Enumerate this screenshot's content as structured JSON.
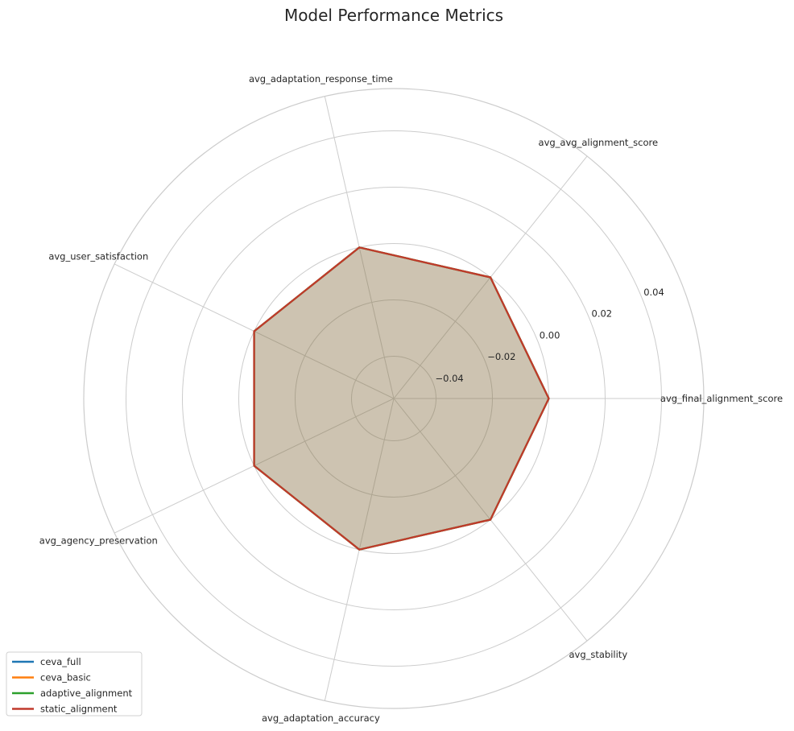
{
  "chart_data": {
    "type": "radar",
    "title": "Model Performance Metrics",
    "axes": [
      "avg_final_alignment_score",
      "avg_avg_alignment_score",
      "avg_adaptation_response_time",
      "avg_user_satisfaction",
      "avg_agency_preservation",
      "avg_adaptation_accuracy",
      "avg_stability"
    ],
    "rlim": [
      -0.055,
      0.055
    ],
    "rticks": [
      -0.04,
      -0.02,
      0.0,
      0.02,
      0.04
    ],
    "rtick_labels": [
      "−0.04",
      "−0.02",
      "0.00",
      "0.02",
      "0.04"
    ],
    "grid": true,
    "legend_position": "lower-left",
    "series": [
      {
        "name": "ceva_full",
        "color": "#1f77b4",
        "values": [
          0,
          0,
          0,
          0,
          0,
          0,
          0
        ]
      },
      {
        "name": "ceva_basic",
        "color": "#ff7f0e",
        "values": [
          0,
          0,
          0,
          0,
          0,
          0,
          0
        ]
      },
      {
        "name": "adaptive_alignment",
        "color": "#2ca02c",
        "values": [
          0,
          0,
          0,
          0,
          0,
          0,
          0
        ]
      },
      {
        "name": "static_alignment",
        "color": "#c0392b",
        "values": [
          0,
          0,
          0,
          0,
          0,
          0,
          0
        ]
      }
    ]
  }
}
